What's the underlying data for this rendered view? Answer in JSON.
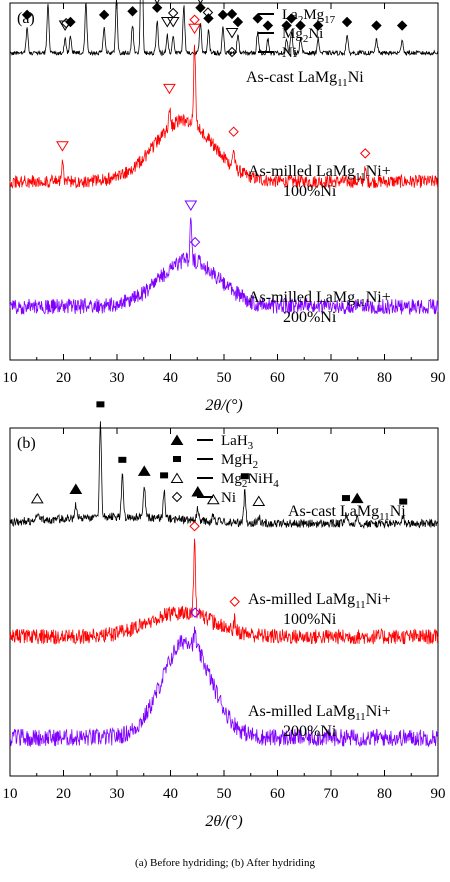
{
  "caption": "(a) Before hydriding; (b) After hydriding",
  "colors": {
    "black": "#000000",
    "red": "#ff0000",
    "purple": "#7f00ff"
  },
  "chart_data": [
    {
      "type": "line",
      "panel_label": "(a)",
      "xlabel": "2θ/(°)",
      "xlim": [
        10,
        90
      ],
      "xticks": [
        10,
        20,
        30,
        40,
        50,
        60,
        70,
        80,
        90
      ],
      "y_axis_ticks": false,
      "legend": {
        "placement": "top-right",
        "entries": [
          {
            "symbol": "diamond-filled",
            "label": "La2Mg17"
          },
          {
            "symbol": "triangle-down-open",
            "label": "Mg2Ni"
          },
          {
            "symbol": "diamond-open",
            "label": "Ni"
          }
        ]
      },
      "series": [
        {
          "name": "As-cast LaMg11Ni",
          "color": "#000000",
          "baseline": 0.86,
          "noise": 0.006,
          "hump": null,
          "peaks": [
            [
              13.2,
              0.07
            ],
            [
              17.1,
              0.14
            ],
            [
              20.3,
              0.04
            ],
            [
              21.3,
              0.05
            ],
            [
              24.2,
              0.14
            ],
            [
              27.6,
              0.07
            ],
            [
              29.9,
              0.15
            ],
            [
              32.9,
              0.08
            ],
            [
              34.6,
              0.42
            ],
            [
              37.5,
              0.09
            ],
            [
              39.4,
              0.05
            ],
            [
              40.5,
              0.05
            ],
            [
              42.5,
              0.13
            ],
            [
              45.6,
              0.09
            ],
            [
              47.1,
              0.06
            ],
            [
              49.8,
              0.07
            ],
            [
              52.6,
              0.05
            ],
            [
              56.3,
              0.06
            ],
            [
              58.2,
              0.04
            ],
            [
              61.7,
              0.04
            ],
            [
              62.6,
              0.06
            ],
            [
              64.3,
              0.04
            ],
            [
              67.6,
              0.04
            ],
            [
              73.0,
              0.05
            ],
            [
              78.5,
              0.04
            ],
            [
              83.3,
              0.04
            ]
          ],
          "markers": [
            {
              "symbol": "diamond-filled",
              "x": [
                13.2,
                17.1,
                21.3,
                24.2,
                27.6,
                29.9,
                32.9,
                34.6,
                37.5,
                42.5,
                45.6,
                47.1,
                49.8,
                52.6,
                56.3,
                58.2,
                61.7,
                62.6,
                64.3,
                67.6,
                73.0,
                78.5,
                83.3
              ]
            },
            {
              "symbol": "triangle-down-open",
              "x": [
                20.3,
                37.5,
                39.4,
                40.5,
                45.6
              ]
            },
            {
              "symbol": "diamond-open",
              "x": [
                20.5,
                40.5,
                47.0
              ]
            }
          ],
          "label": [
            "As-cast LaMg11Ni"
          ]
        },
        {
          "name": "As-milled LaMg11Ni+100%Ni",
          "color": "#ff0000",
          "baseline": 0.5,
          "noise": 0.018,
          "hump": [
            42.5,
            5.5,
            0.17
          ],
          "peaks": [
            [
              19.8,
              0.05
            ],
            [
              39.8,
              0.06
            ],
            [
              44.5,
              0.22
            ],
            [
              51.8,
              0.05
            ],
            [
              76.4,
              0.03
            ]
          ],
          "markers": [
            {
              "symbol": "triangle-down-open",
              "x": [
                19.8,
                39.8,
                44.5
              ]
            },
            {
              "symbol": "diamond-open",
              "x": [
                44.5,
                51.8,
                76.4
              ]
            }
          ],
          "label": [
            "As-milled LaMg11Ni+",
            "100%Ni"
          ]
        },
        {
          "name": "As-milled LaMg11Ni+200%Ni",
          "color": "#7f00ff",
          "baseline": 0.15,
          "noise": 0.022,
          "hump": [
            43.5,
            5.5,
            0.13
          ],
          "peaks": [
            [
              43.8,
              0.1
            ]
          ],
          "markers": [
            {
              "symbol": "triangle-down-open",
              "x": [
                43.8
              ]
            },
            {
              "symbol": "diamond-open",
              "x": [
                44.6
              ]
            }
          ],
          "label": [
            "As-milled LaMg11Ni+",
            "200%Ni"
          ]
        }
      ]
    },
    {
      "type": "line",
      "panel_label": "(b)",
      "xlabel": "2θ/(°)",
      "xlim": [
        10,
        90
      ],
      "xticks": [
        10,
        20,
        30,
        40,
        50,
        60,
        70,
        80,
        90
      ],
      "y_axis_ticks": false,
      "legend": {
        "placement": "top-center",
        "entries": [
          {
            "symbol": "triangle-up-filled",
            "label": "LaH3"
          },
          {
            "symbol": "square-filled",
            "label": "MgH2"
          },
          {
            "symbol": "triangle-up-open",
            "label": "Mg2NiH4"
          },
          {
            "symbol": "diamond-open",
            "label": "Ni"
          }
        ]
      },
      "series": [
        {
          "name": "As-cast LaMg11Ni",
          "color": "#000000",
          "baseline": 0.725,
          "noise": 0.012,
          "hump": [
            30,
            12,
            0.02
          ],
          "peaks": [
            [
              15.1,
              0.02
            ],
            [
              22.3,
              0.04
            ],
            [
              26.9,
              0.28
            ],
            [
              31.0,
              0.12
            ],
            [
              35.1,
              0.09
            ],
            [
              38.8,
              0.08
            ],
            [
              45.1,
              0.04
            ],
            [
              48.0,
              0.02
            ],
            [
              53.9,
              0.09
            ],
            [
              56.5,
              0.02
            ],
            [
              72.8,
              0.03
            ],
            [
              74.9,
              0.03
            ],
            [
              83.5,
              0.02
            ]
          ],
          "markers": [
            {
              "symbol": "triangle-up-filled",
              "x": [
                22.3,
                35.1,
                45.1,
                74.9
              ]
            },
            {
              "symbol": "square-filled",
              "x": [
                26.9,
                31.0,
                38.8,
                53.9,
                72.8,
                83.5
              ]
            },
            {
              "symbol": "triangle-up-open",
              "x": [
                15.1,
                48.0,
                56.5
              ]
            }
          ],
          "label": [
            "As-cast LaMg11Ni"
          ]
        },
        {
          "name": "As-milled LaMg11Ni+100%Ni",
          "color": "#ff0000",
          "baseline": 0.4,
          "noise": 0.022,
          "hump": [
            42,
            6,
            0.07
          ],
          "peaks": [
            [
              44.5,
              0.2
            ],
            [
              52.0,
              0.03
            ]
          ],
          "markers": [
            {
              "symbol": "diamond-open",
              "x": [
                44.5,
                52.0
              ]
            }
          ],
          "label": [
            "As-milled LaMg11Ni+",
            "100%Ni"
          ]
        },
        {
          "name": "As-milled LaMg11Ni+200%Ni",
          "color": "#7f00ff",
          "baseline": 0.11,
          "noise": 0.025,
          "hump": [
            43,
            4.5,
            0.28
          ],
          "peaks": [
            [
              44.6,
              0.04
            ]
          ],
          "markers": [
            {
              "symbol": "diamond-open",
              "x": [
                44.6
              ]
            }
          ],
          "label": [
            "As-milled LaMg11Ni+",
            "200%Ni"
          ]
        }
      ]
    }
  ]
}
